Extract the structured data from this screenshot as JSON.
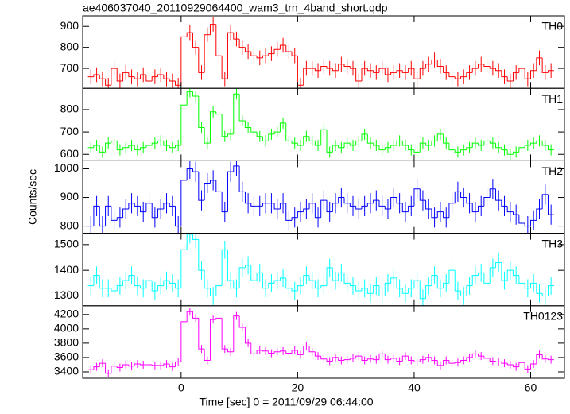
{
  "chart_data": {
    "type": "step",
    "title": "ae406037040_20110929064400_wam3_trn_4band_short.qdp",
    "xlabel": "Time [sec] 0 = 2011/09/29 06:44:00",
    "ylabel": "Counts/sec",
    "xlim": [
      -16.9,
      65.8
    ],
    "xticks": [
      0,
      20,
      40,
      60
    ],
    "x": [
      -15.5,
      -14.5,
      -13.5,
      -12.5,
      -11.5,
      -10.5,
      -9.5,
      -8.5,
      -7.5,
      -6.5,
      -5.5,
      -4.5,
      -3.5,
      -2.5,
      -1.5,
      -0.5,
      0.5,
      1.5,
      2.5,
      3.5,
      4.5,
      5.5,
      6.5,
      7.5,
      8.5,
      9.5,
      10.5,
      11.5,
      12.5,
      13.5,
      14.5,
      15.5,
      16.5,
      17.5,
      18.5,
      19.5,
      20.5,
      21.5,
      22.5,
      23.5,
      24.5,
      25.5,
      26.5,
      27.5,
      28.5,
      29.5,
      30.5,
      31.5,
      32.5,
      33.5,
      34.5,
      35.5,
      36.5,
      37.5,
      38.5,
      39.5,
      40.5,
      41.5,
      42.5,
      43.5,
      44.5,
      45.5,
      46.5,
      47.5,
      48.5,
      49.5,
      50.5,
      51.5,
      52.5,
      53.5,
      54.5,
      55.5,
      56.5,
      57.5,
      58.5,
      59.5,
      60.5,
      61.5,
      62.5,
      63.5
    ],
    "series": [
      {
        "name": "TH0",
        "color": "#ff0000",
        "error": 35,
        "ylim": [
          605,
          950
        ],
        "yticks": [
          700,
          800,
          900
        ],
        "values": [
          660,
          670,
          650,
          620,
          700,
          640,
          680,
          660,
          650,
          670,
          640,
          660,
          670,
          650,
          640,
          620,
          850,
          870,
          800,
          680,
          860,
          910,
          760,
          650,
          870,
          840,
          800,
          780,
          760,
          750,
          760,
          770,
          790,
          810,
          780,
          760,
          620,
          700,
          700,
          690,
          710,
          700,
          690,
          720,
          710,
          700,
          640,
          700,
          690,
          680,
          700,
          670,
          680,
          690,
          680,
          700,
          650,
          700,
          720,
          740,
          710,
          680,
          660,
          650,
          660,
          680,
          700,
          720,
          710,
          700,
          690,
          660,
          640,
          680,
          700,
          650,
          690,
          750,
          680,
          690
        ]
      },
      {
        "name": "TH1",
        "color": "#00ff00",
        "error": 25,
        "ylim": [
          571,
          895
        ],
        "yticks": [
          600,
          700,
          800
        ],
        "values": [
          630,
          640,
          610,
          650,
          660,
          620,
          630,
          640,
          620,
          630,
          640,
          650,
          660,
          640,
          630,
          640,
          820,
          880,
          860,
          720,
          650,
          790,
          780,
          680,
          690,
          870,
          750,
          720,
          700,
          680,
          660,
          690,
          700,
          740,
          660,
          650,
          640,
          680,
          660,
          640,
          710,
          610,
          640,
          630,
          650,
          640,
          660,
          690,
          650,
          640,
          620,
          630,
          640,
          660,
          640,
          620,
          610,
          650,
          640,
          660,
          690,
          650,
          620,
          610,
          620,
          630,
          650,
          640,
          660,
          650,
          630,
          620,
          600,
          610,
          630,
          640,
          650,
          660,
          640,
          620
        ]
      },
      {
        "name": "TH2",
        "color": "#0000ff",
        "error": 35,
        "ylim": [
          775,
          1028
        ],
        "yticks": [
          800,
          900,
          1000
        ],
        "values": [
          800,
          870,
          800,
          870,
          820,
          830,
          860,
          880,
          870,
          850,
          880,
          830,
          860,
          880,
          870,
          800,
          960,
          1000,
          990,
          890,
          950,
          960,
          920,
          850,
          990,
          1010,
          920,
          880,
          870,
          870,
          880,
          880,
          860,
          880,
          820,
          830,
          850,
          860,
          880,
          830,
          890,
          850,
          880,
          900,
          880,
          870,
          860,
          870,
          880,
          890,
          870,
          860,
          900,
          880,
          850,
          870,
          930,
          890,
          860,
          830,
          850,
          830,
          880,
          920,
          900,
          880,
          850,
          870,
          900,
          930,
          890,
          870,
          850,
          840,
          810,
          800,
          820,
          860,
          910,
          840
        ]
      },
      {
        "name": "TH3",
        "color": "#00ffff",
        "error": 35,
        "ylim": [
          1262,
          1544
        ],
        "yticks": [
          1300,
          1400,
          1500
        ],
        "values": [
          1340,
          1380,
          1330,
          1330,
          1320,
          1340,
          1360,
          1380,
          1340,
          1330,
          1360,
          1320,
          1340,
          1360,
          1350,
          1330,
          1480,
          1540,
          1520,
          1400,
          1330,
          1300,
          1340,
          1480,
          1360,
          1330,
          1410,
          1420,
          1360,
          1390,
          1330,
          1350,
          1360,
          1370,
          1330,
          1320,
          1340,
          1380,
          1360,
          1330,
          1340,
          1410,
          1360,
          1390,
          1350,
          1340,
          1320,
          1330,
          1310,
          1340,
          1300,
          1350,
          1370,
          1330,
          1310,
          1330,
          1360,
          1290,
          1340,
          1380,
          1330,
          1350,
          1400,
          1320,
          1300,
          1340,
          1380,
          1390,
          1350,
          1410,
          1430,
          1360,
          1400,
          1380,
          1350,
          1330,
          1350,
          1310,
          1300,
          1340
        ]
      },
      {
        "name": "TH0123",
        "color": "#ff00ff",
        "error": 55,
        "ylim": [
          3311,
          4322
        ],
        "yticks": [
          3400,
          3600,
          3800,
          4000,
          4200
        ],
        "values": [
          3430,
          3470,
          3520,
          3380,
          3480,
          3460,
          3500,
          3480,
          3510,
          3500,
          3500,
          3490,
          3490,
          3510,
          3470,
          3540,
          4100,
          4240,
          4150,
          3720,
          3560,
          4130,
          4150,
          3720,
          3680,
          4180,
          4020,
          3800,
          3650,
          3700,
          3690,
          3660,
          3680,
          3690,
          3660,
          3700,
          3640,
          3760,
          3680,
          3620,
          3580,
          3550,
          3600,
          3560,
          3570,
          3590,
          3620,
          3560,
          3580,
          3570,
          3650,
          3570,
          3590,
          3550,
          3620,
          3560,
          3540,
          3570,
          3600,
          3560,
          3490,
          3560,
          3520,
          3530,
          3560,
          3600,
          3650,
          3620,
          3590,
          3550,
          3540,
          3520,
          3500,
          3470,
          3530,
          3440,
          3510,
          3640,
          3580,
          3570
        ]
      }
    ]
  }
}
